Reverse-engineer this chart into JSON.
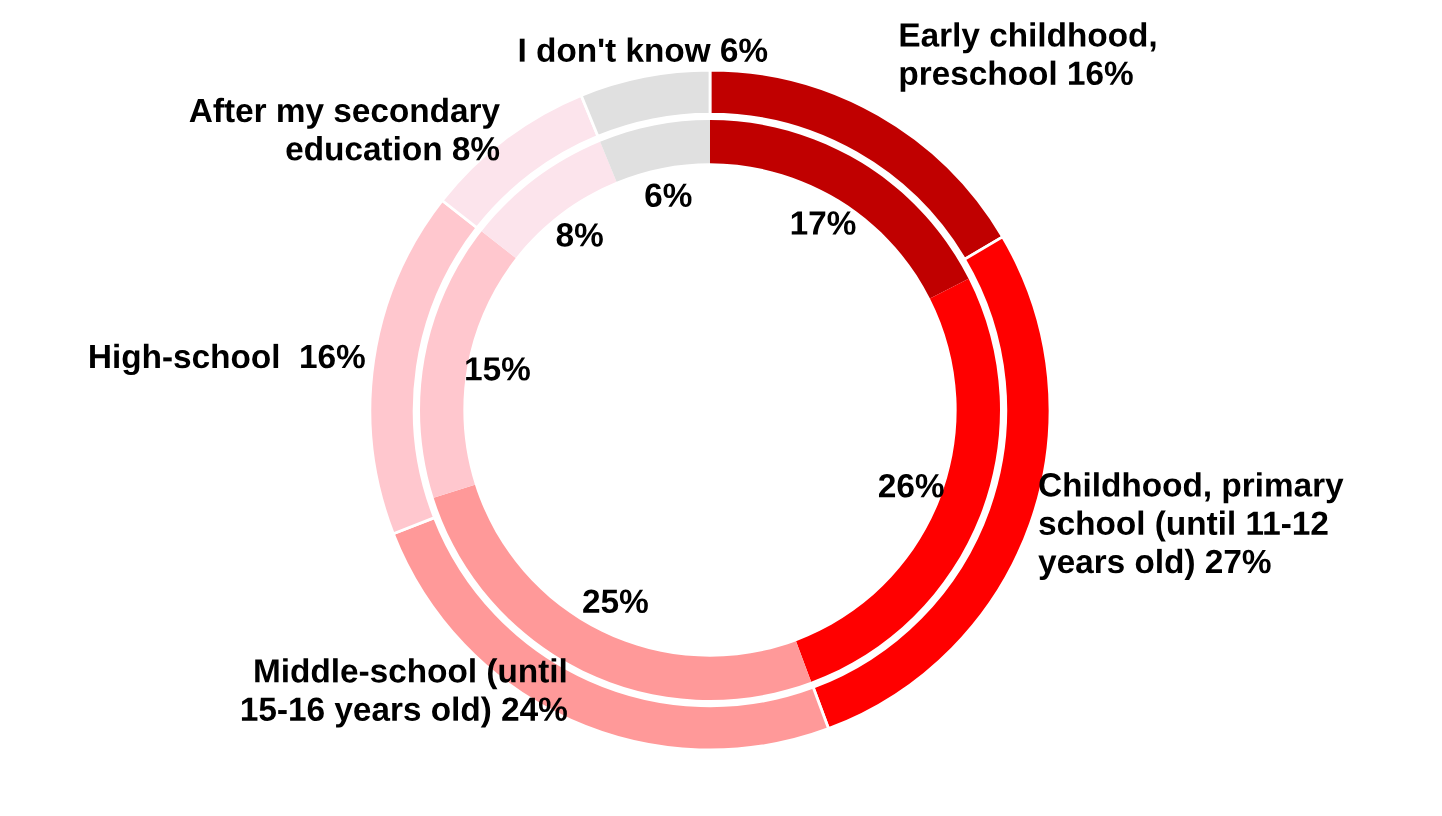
{
  "chart_data": {
    "type": "donut",
    "categories": [
      "Early childhood,\npreschool",
      "Childhood, primary\nschool (until 11-12\nyears old)",
      "Middle-school (until\n15-16 years old)",
      "High-school ",
      "After my secondary\neducation",
      "I don't know"
    ],
    "colors": [
      "#c00000",
      "#ff0000",
      "#ff9999",
      "#ffc7ce",
      "#fce4ec",
      "#e0e0e0"
    ],
    "series": [
      {
        "values": [
          16,
          27,
          24,
          16,
          8,
          6
        ],
        "value_labels": [
          "16%",
          "27%",
          "24%",
          "16%",
          "8%",
          "6%"
        ]
      },
      {
        "values": [
          17,
          26,
          25,
          15,
          8,
          6
        ],
        "value_labels": [
          "17%",
          "26%",
          "25%",
          "15%",
          "8%",
          "6%"
        ]
      }
    ]
  }
}
